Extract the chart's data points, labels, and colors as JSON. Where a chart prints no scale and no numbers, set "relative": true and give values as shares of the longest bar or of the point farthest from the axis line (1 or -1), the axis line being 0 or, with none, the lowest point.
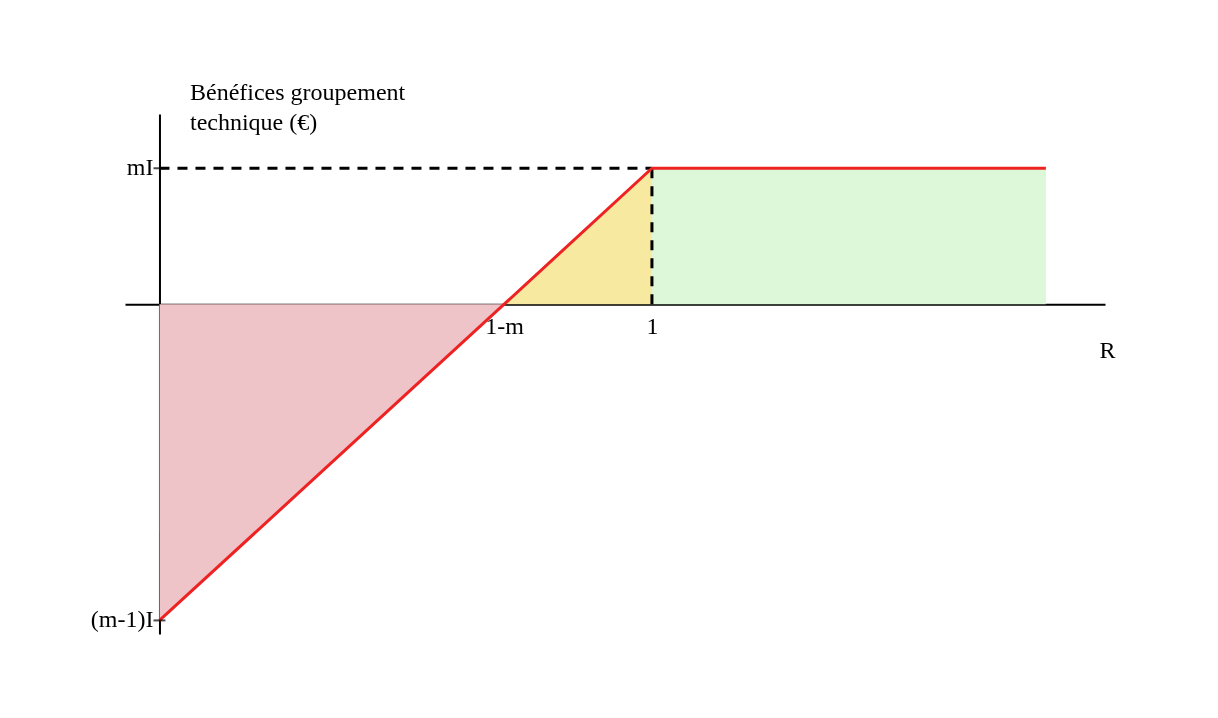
{
  "chart_data": {
    "type": "area",
    "xlabel": "R",
    "ylabel": "Bénéfices groupement technique (€)",
    "relative": true,
    "xlim": [
      -0.07,
      1.92
    ],
    "xticks": [
      {
        "value": 0.7,
        "label": "1-m"
      },
      1
    ],
    "grid": false,
    "annotations": [
      {
        "text": "mI",
        "x": 0,
        "y": 0.43
      },
      {
        "text": "(m-1)I",
        "x": 0,
        "y": -1
      }
    ],
    "series": [
      {
        "color": "#efc4c8",
        "x": [
          0,
          0.7
        ],
        "values": [
          -1,
          0
        ]
      },
      {
        "color": "#f8e9a0",
        "x": [
          0.7,
          1
        ],
        "values": [
          0,
          0.43
        ]
      },
      {
        "color": "#dcf8d8",
        "x": [
          1,
          1.8
        ],
        "values": [
          0.43,
          0.43
        ]
      },
      {
        "type": "line",
        "color": "#000000",
        "line_style": "dashed",
        "x": [
          0,
          1
        ],
        "values": [
          0.43,
          0.43
        ]
      },
      {
        "type": "line",
        "color": "#000000",
        "line_style": "dashed",
        "x": [
          1,
          1
        ],
        "values": [
          0,
          0.43
        ]
      },
      {
        "type": "line",
        "color": "#ee2222",
        "line_style": "solid",
        "x": [
          0,
          0.7,
          1,
          1.8
        ],
        "values": [
          -1,
          0,
          0.43,
          0.43
        ]
      }
    ]
  }
}
